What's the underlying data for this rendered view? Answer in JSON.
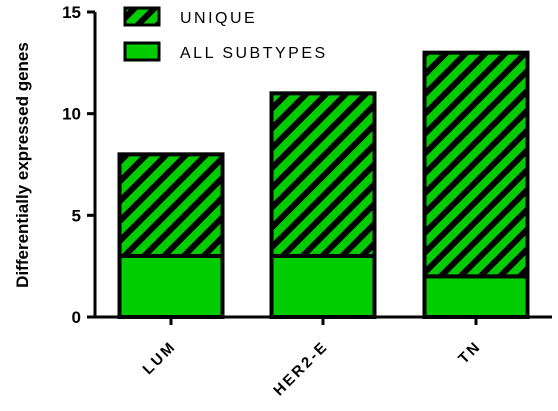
{
  "chart_data": {
    "type": "bar",
    "stacked": true,
    "categories": [
      "LUM",
      "HER2-E",
      "TN"
    ],
    "series": [
      {
        "name": "ALL SUBTYPES",
        "values": [
          3,
          3,
          2
        ],
        "pattern": "solid",
        "color": "#00cc00"
      },
      {
        "name": "UNIQUE",
        "values": [
          5,
          8,
          11
        ],
        "pattern": "diagonal-hatch",
        "color": "#00cc00",
        "hatch_color": "#000000"
      }
    ],
    "legend": {
      "position": "top-left",
      "order": [
        "UNIQUE",
        "ALL SUBTYPES"
      ]
    },
    "ylabel": "Differentially expressed genes",
    "xlabel": "",
    "ylim": [
      0,
      15
    ],
    "yticks": [
      "0",
      "5",
      "10",
      "15"
    ],
    "grid": false
  }
}
